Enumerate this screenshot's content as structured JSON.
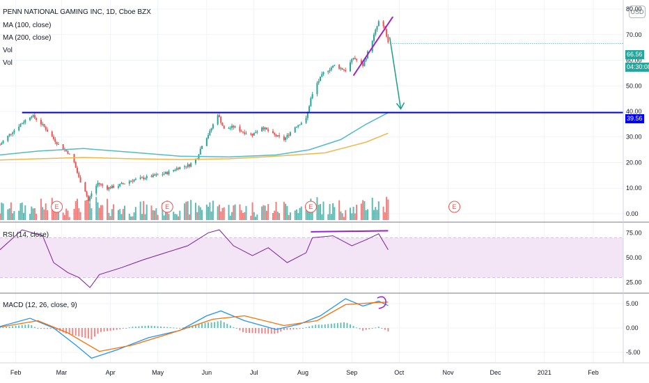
{
  "title": "PENN NATIONAL GAMING INC, 1D, Cboe BZX",
  "legend": [
    "MA (100, close)",
    "MA (200, close)",
    "Vol",
    "Vol"
  ],
  "currency_button": "USD",
  "price_tag": "66.56",
  "countdown_tag": "04:30:08",
  "level_tag": "39.56",
  "rsi_label": "RSI (14, close)",
  "macd_label": "MACD (12, 26, close, 9)",
  "earnings_marker": "E",
  "price_axis_ticks": [
    "80.00",
    "70.00",
    "60.00",
    "50.00",
    "40.00",
    "30.00",
    "20.00",
    "10.00",
    "0.00"
  ],
  "rsi_axis_ticks": [
    "75.00",
    "50.00",
    "25.00"
  ],
  "macd_axis_ticks": [
    "5.00",
    "0.00",
    "-5.00"
  ],
  "x_axis_labels": [
    "Feb",
    "Mar",
    "Apr",
    "May",
    "Jun",
    "Jul",
    "Aug",
    "Sep",
    "Oct",
    "Nov",
    "Dec",
    "2021",
    "Feb"
  ],
  "colors": {
    "up": "#26a69a",
    "down": "#ef5350",
    "vol_up": "#26a69a",
    "vol_down": "#ef5350",
    "ma100": "#4fbcc8",
    "ma200": "#f3b64a",
    "level": "#0000ff",
    "trend_line": "#a020c8",
    "arrow": "#16a085",
    "rsi": "#7b1fa2",
    "rsi_band": "#f3e5f5",
    "macd": "#2196f3",
    "signal": "#ff6d00",
    "price_tag": "#26a69a",
    "level_tag": "#0000ff",
    "grid": "#f0f3fa"
  },
  "chart_data": {
    "type": "candlestick",
    "title": "PENN NATIONAL GAMING INC, 1D, Cboe BZX",
    "period": "1D",
    "x_range": [
      "2020-01-22",
      "2021-02-20"
    ],
    "price_ylim": [
      -3,
      83
    ],
    "last_price": 66.56,
    "horizontal_level": 39.56,
    "price_path": [
      [
        "2020-01-22",
        27
      ],
      [
        "2020-01-28",
        31
      ],
      [
        "2020-02-04",
        35
      ],
      [
        "2020-02-11",
        38.5
      ],
      [
        "2020-02-14",
        37
      ],
      [
        "2020-02-19",
        34
      ],
      [
        "2020-02-24",
        30
      ],
      [
        "2020-02-28",
        27
      ],
      [
        "2020-03-05",
        24
      ],
      [
        "2020-03-09",
        20
      ],
      [
        "2020-03-12",
        14
      ],
      [
        "2020-03-16",
        9
      ],
      [
        "2020-03-18",
        5
      ],
      [
        "2020-03-20",
        8
      ],
      [
        "2020-03-24",
        12
      ],
      [
        "2020-03-30",
        10
      ],
      [
        "2020-04-06",
        11
      ],
      [
        "2020-04-14",
        13
      ],
      [
        "2020-04-22",
        14
      ],
      [
        "2020-04-30",
        15
      ],
      [
        "2020-05-07",
        16
      ],
      [
        "2020-05-14",
        18
      ],
      [
        "2020-05-21",
        19
      ],
      [
        "2020-05-26",
        22
      ],
      [
        "2020-05-29",
        27
      ],
      [
        "2020-06-03",
        32
      ],
      [
        "2020-06-08",
        39
      ],
      [
        "2020-06-12",
        33
      ],
      [
        "2020-06-18",
        34
      ],
      [
        "2020-06-24",
        32
      ],
      [
        "2020-06-30",
        31
      ],
      [
        "2020-07-06",
        34
      ],
      [
        "2020-07-13",
        31
      ],
      [
        "2020-07-20",
        29
      ],
      [
        "2020-07-27",
        34
      ],
      [
        "2020-08-03",
        37
      ],
      [
        "2020-08-06",
        45
      ],
      [
        "2020-08-10",
        51
      ],
      [
        "2020-08-14",
        55
      ],
      [
        "2020-08-21",
        58
      ],
      [
        "2020-08-28",
        56
      ],
      [
        "2020-09-02",
        61
      ],
      [
        "2020-09-08",
        58
      ],
      [
        "2020-09-14",
        68
      ],
      [
        "2020-09-18",
        75
      ],
      [
        "2020-09-22",
        72
      ],
      [
        "2020-09-24",
        66.56
      ]
    ],
    "ma100": [
      [
        "2020-01-22",
        23
      ],
      [
        "2020-02-15",
        24.5
      ],
      [
        "2020-03-15",
        25.5
      ],
      [
        "2020-04-15",
        24
      ],
      [
        "2020-05-15",
        22.5
      ],
      [
        "2020-06-15",
        22.2
      ],
      [
        "2020-07-15",
        23
      ],
      [
        "2020-08-05",
        25
      ],
      [
        "2020-08-25",
        29
      ],
      [
        "2020-09-10",
        35
      ],
      [
        "2020-09-24",
        39.5
      ]
    ],
    "ma200": [
      [
        "2020-01-22",
        21
      ],
      [
        "2020-02-15",
        21.5
      ],
      [
        "2020-03-15",
        22
      ],
      [
        "2020-04-15",
        21.5
      ],
      [
        "2020-05-15",
        21.2
      ],
      [
        "2020-06-15",
        21.5
      ],
      [
        "2020-07-15",
        22.5
      ],
      [
        "2020-08-15",
        23.8
      ],
      [
        "2020-09-10",
        28
      ],
      [
        "2020-09-24",
        31.5
      ]
    ],
    "volume": {
      "ylim": [
        0,
        40
      ],
      "unit": "M"
    },
    "earnings_dates": [
      "2020-02-27",
      "2020-05-07",
      "2020-08-06",
      "2020-11-05"
    ],
    "rsi": {
      "label": "RSI (14, close)",
      "ylim": [
        15,
        85
      ],
      "bands": [
        30,
        70
      ],
      "points": [
        [
          "2020-01-22",
          58
        ],
        [
          "2020-02-05",
          78
        ],
        [
          "2020-02-18",
          72
        ],
        [
          "2020-02-25",
          45
        ],
        [
          "2020-03-05",
          35
        ],
        [
          "2020-03-12",
          30
        ],
        [
          "2020-03-19",
          20
        ],
        [
          "2020-03-25",
          33
        ],
        [
          "2020-04-08",
          40
        ],
        [
          "2020-04-22",
          48
        ],
        [
          "2020-05-06",
          55
        ],
        [
          "2020-05-20",
          62
        ],
        [
          "2020-06-02",
          75
        ],
        [
          "2020-06-09",
          78
        ],
        [
          "2020-06-18",
          62
        ],
        [
          "2020-06-30",
          52
        ],
        [
          "2020-07-10",
          60
        ],
        [
          "2020-07-22",
          45
        ],
        [
          "2020-08-03",
          55
        ],
        [
          "2020-08-07",
          70
        ],
        [
          "2020-08-20",
          72
        ],
        [
          "2020-09-01",
          62
        ],
        [
          "2020-09-10",
          68
        ],
        [
          "2020-09-18",
          74
        ],
        [
          "2020-09-24",
          58
        ]
      ]
    },
    "macd": {
      "label": "MACD (12, 26, close, 9)",
      "ylim": [
        -7,
        7
      ],
      "macd": [
        [
          "2020-01-22",
          0.3
        ],
        [
          "2020-02-10",
          2
        ],
        [
          "2020-02-25",
          0
        ],
        [
          "2020-03-10",
          -3.5
        ],
        [
          "2020-03-20",
          -6.2
        ],
        [
          "2020-04-05",
          -4.5
        ],
        [
          "2020-04-25",
          -2
        ],
        [
          "2020-05-15",
          -0.5
        ],
        [
          "2020-06-01",
          2.5
        ],
        [
          "2020-06-10",
          3.5
        ],
        [
          "2020-06-25",
          1.5
        ],
        [
          "2020-07-15",
          -0.3
        ],
        [
          "2020-07-30",
          0.8
        ],
        [
          "2020-08-12",
          2.5
        ],
        [
          "2020-08-28",
          6
        ],
        [
          "2020-09-08",
          4.5
        ],
        [
          "2020-09-18",
          5.5
        ],
        [
          "2020-09-24",
          4.6
        ]
      ],
      "signal": [
        [
          "2020-01-22",
          0.2
        ],
        [
          "2020-02-15",
          1.5
        ],
        [
          "2020-03-05",
          -1
        ],
        [
          "2020-03-25",
          -4.8
        ],
        [
          "2020-04-15",
          -3.5
        ],
        [
          "2020-05-10",
          -1
        ],
        [
          "2020-06-05",
          1.8
        ],
        [
          "2020-06-25",
          2.5
        ],
        [
          "2020-07-20",
          0.5
        ],
        [
          "2020-08-10",
          1.5
        ],
        [
          "2020-08-28",
          4.8
        ],
        [
          "2020-09-15",
          5.2
        ],
        [
          "2020-09-24",
          5.3
        ]
      ]
    }
  }
}
